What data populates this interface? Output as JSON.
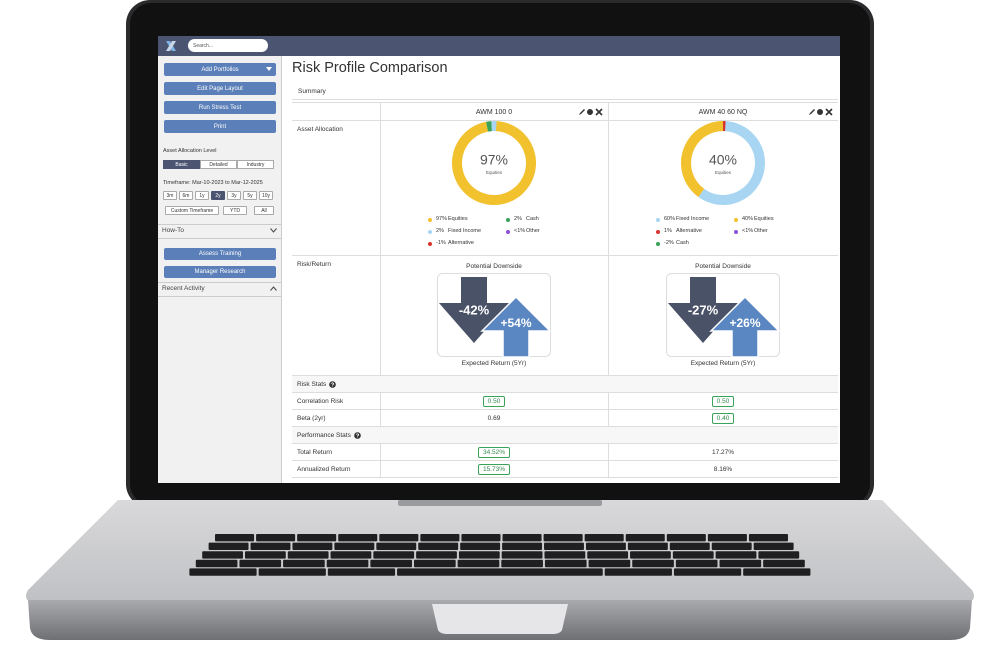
{
  "topbar": {
    "search": "Search..."
  },
  "sidebar": {
    "buttons": [
      "Add Portfolios",
      "Edit Page Layout",
      "Run Stress Test",
      "Print"
    ],
    "allocation_level": {
      "label": "Asset Allocation Level",
      "options": [
        "Basic",
        "Detailed",
        "Industry"
      ],
      "selected": 0
    },
    "timeframe": {
      "label": "Timeframe: Mar-10-2023 to Mar-12-2025",
      "periods": [
        "3m",
        "6m",
        "1y",
        "2y",
        "3y",
        "5y",
        "10y"
      ],
      "selected": 3,
      "options": [
        "Custom Timeframe",
        "YTD",
        "All"
      ]
    },
    "how_to": {
      "title": "How-To",
      "buttons": [
        "Assess Training",
        "Manager Research"
      ]
    },
    "recent_activity": {
      "title": "Recent Activity"
    }
  },
  "main": {
    "title": "Risk Profile Comparison",
    "tab": "Summary",
    "row_labels": {
      "allocation": "Asset Allocation",
      "risk_return": "Risk/Return"
    },
    "risk_return_labels": {
      "downside": "Potential Downside",
      "expected": "Expected Return (5Yr)"
    },
    "portfolios": [
      {
        "name": "AWM 100 0",
        "center_value": "97%",
        "center_label": "Equities",
        "allocation": [
          {
            "label": "97%",
            "name": "Equities",
            "value": 97,
            "color": "#f2c12e"
          },
          {
            "label": "2%",
            "name": "Cash",
            "value": 2,
            "color": "#3aa35a"
          },
          {
            "label": "2%",
            "name": "Fixed Income",
            "value": 2,
            "color": "#a8d5f2"
          },
          {
            "label": "<1%",
            "name": "Other",
            "color": "#8b4fd6"
          },
          {
            "label": "-1%",
            "name": "Alternative",
            "color": "#d9342b"
          }
        ],
        "downside": "-42%",
        "expected": "+54%"
      },
      {
        "name": "AWM 40 60 NQ",
        "center_value": "40%",
        "center_label": "Equities",
        "allocation": [
          {
            "label": "60%",
            "name": "Fixed Income",
            "value": 60,
            "color": "#a8d5f2"
          },
          {
            "label": "40%",
            "name": "Equities",
            "value": 40,
            "color": "#f2c12e"
          },
          {
            "label": "1%",
            "name": "Alternative",
            "value": 1,
            "color": "#d9342b"
          },
          {
            "label": "<1%",
            "name": "Other",
            "color": "#8b4fd6"
          },
          {
            "label": "-2%",
            "name": "Cash",
            "color": "#3aa35a"
          }
        ],
        "downside": "-27%",
        "expected": "+26%"
      }
    ],
    "stats": [
      {
        "title": "Risk Stats",
        "rows": [
          {
            "label": "Correlation Risk",
            "values": [
              "0.50",
              "0.50"
            ],
            "highlight": [
              true,
              true
            ]
          },
          {
            "label": "Beta (2yr)",
            "values": [
              "0.69",
              "0.40"
            ],
            "highlight": [
              false,
              true
            ]
          }
        ]
      },
      {
        "title": "Performance Stats",
        "rows": [
          {
            "label": "Total Return",
            "values": [
              "34.52%",
              "17.27%"
            ],
            "highlight": [
              true,
              false
            ]
          },
          {
            "label": "Annualized Return",
            "values": [
              "15.73%",
              "8.16%"
            ],
            "highlight": [
              true,
              false
            ]
          }
        ]
      }
    ]
  }
}
